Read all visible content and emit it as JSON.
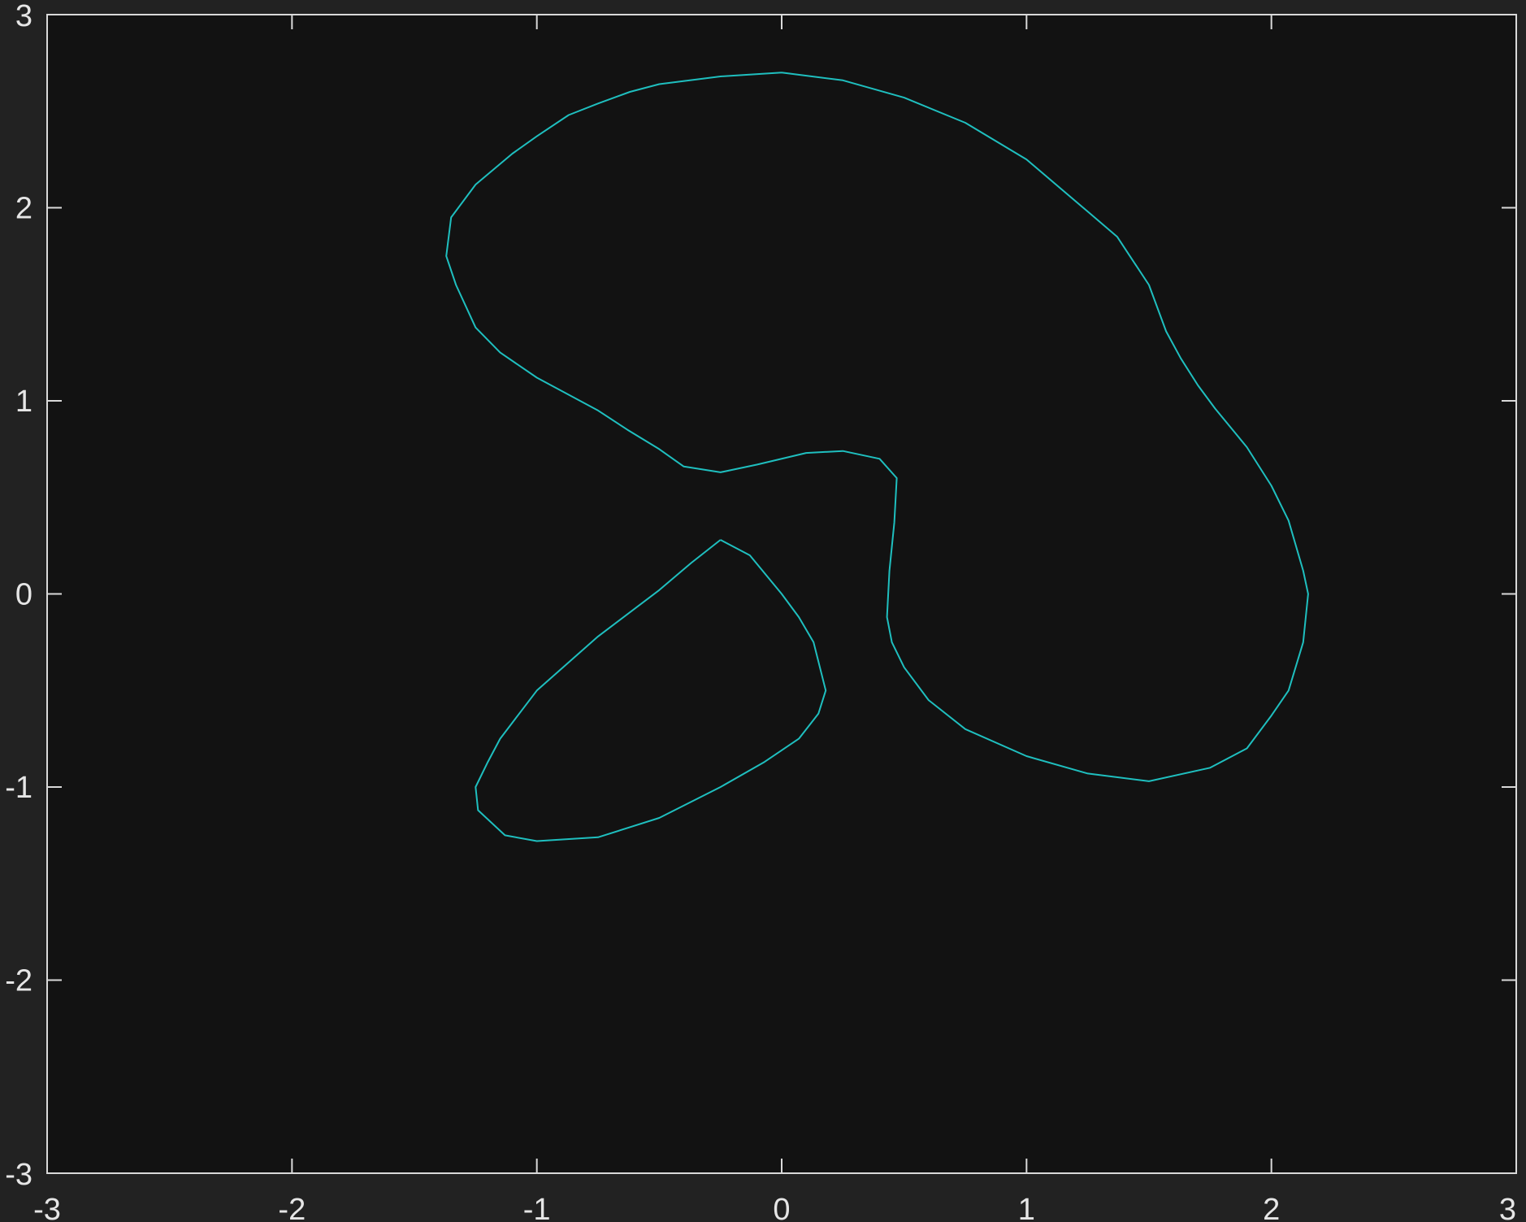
{
  "colors": {
    "figure_background": "#222222",
    "axes_background": "#121212",
    "axes_color": "#d9d9d9",
    "line_color": "#1fbfbf"
  },
  "chart_data": {
    "type": "line",
    "title": "",
    "xlabel": "",
    "ylabel": "",
    "xlim": [
      -3,
      3
    ],
    "ylim": [
      -3,
      3
    ],
    "grid": false,
    "box": true,
    "x_ticks": [
      -3,
      -2,
      -1,
      0,
      1,
      2,
      3
    ],
    "y_ticks": [
      -3,
      -2,
      -1,
      0,
      1,
      2,
      3
    ],
    "x_tick_labels": [
      "-3",
      "-2",
      "-1",
      "0",
      "1",
      "2",
      "3"
    ],
    "y_tick_labels": [
      "-3",
      "-2",
      "-1",
      "0",
      "1",
      "2",
      "3"
    ],
    "series": [
      {
        "color": "#1fbfbf",
        "closed": true,
        "x": [
          0.0,
          0.25,
          0.5,
          0.75,
          1.0,
          1.25,
          1.37,
          1.5,
          1.57,
          1.63,
          1.7,
          1.77,
          1.9,
          2.0,
          2.07,
          2.13,
          2.15,
          2.13,
          2.07,
          2.0,
          1.9,
          1.75,
          1.5,
          1.25,
          1.0,
          0.75,
          0.6,
          0.5,
          0.45,
          0.43,
          0.44,
          0.46,
          0.47,
          0.4,
          0.25,
          0.1,
          -0.1,
          -0.25,
          -0.4,
          -0.5,
          -0.63,
          -0.75,
          -1.0,
          -1.15,
          -1.25,
          -1.33,
          -1.37,
          -1.35,
          -1.25,
          -1.1,
          -1.0,
          -0.87,
          -0.75,
          -0.62,
          -0.5,
          -0.25,
          0.0
        ],
        "y": [
          2.7,
          2.66,
          2.57,
          2.44,
          2.25,
          1.98,
          1.85,
          1.6,
          1.36,
          1.22,
          1.08,
          0.96,
          0.76,
          0.56,
          0.38,
          0.12,
          0.0,
          -0.25,
          -0.5,
          -0.63,
          -0.8,
          -0.9,
          -0.97,
          -0.93,
          -0.84,
          -0.7,
          -0.55,
          -0.38,
          -0.25,
          -0.12,
          0.12,
          0.37,
          0.6,
          0.7,
          0.74,
          0.73,
          0.67,
          0.63,
          0.66,
          0.75,
          0.85,
          0.95,
          1.12,
          1.25,
          1.38,
          1.6,
          1.75,
          1.95,
          2.12,
          2.28,
          2.37,
          2.48,
          2.54,
          2.6,
          2.64,
          2.68,
          2.7
        ]
      },
      {
        "color": "#1fbfbf",
        "closed": true,
        "x": [
          -0.25,
          -0.13,
          0.0,
          0.07,
          0.13,
          0.18,
          0.15,
          0.07,
          -0.07,
          -0.25,
          -0.5,
          -0.75,
          -1.0,
          -1.13,
          -1.24,
          -1.25,
          -1.2,
          -1.15,
          -1.0,
          -0.75,
          -0.5,
          -0.37,
          -0.25
        ],
        "y": [
          0.28,
          0.2,
          0.0,
          -0.12,
          -0.25,
          -0.5,
          -0.62,
          -0.75,
          -0.87,
          -1.0,
          -1.16,
          -1.26,
          -1.28,
          -1.25,
          -1.12,
          -1.0,
          -0.87,
          -0.75,
          -0.5,
          -0.22,
          0.02,
          0.16,
          0.28
        ]
      }
    ]
  }
}
